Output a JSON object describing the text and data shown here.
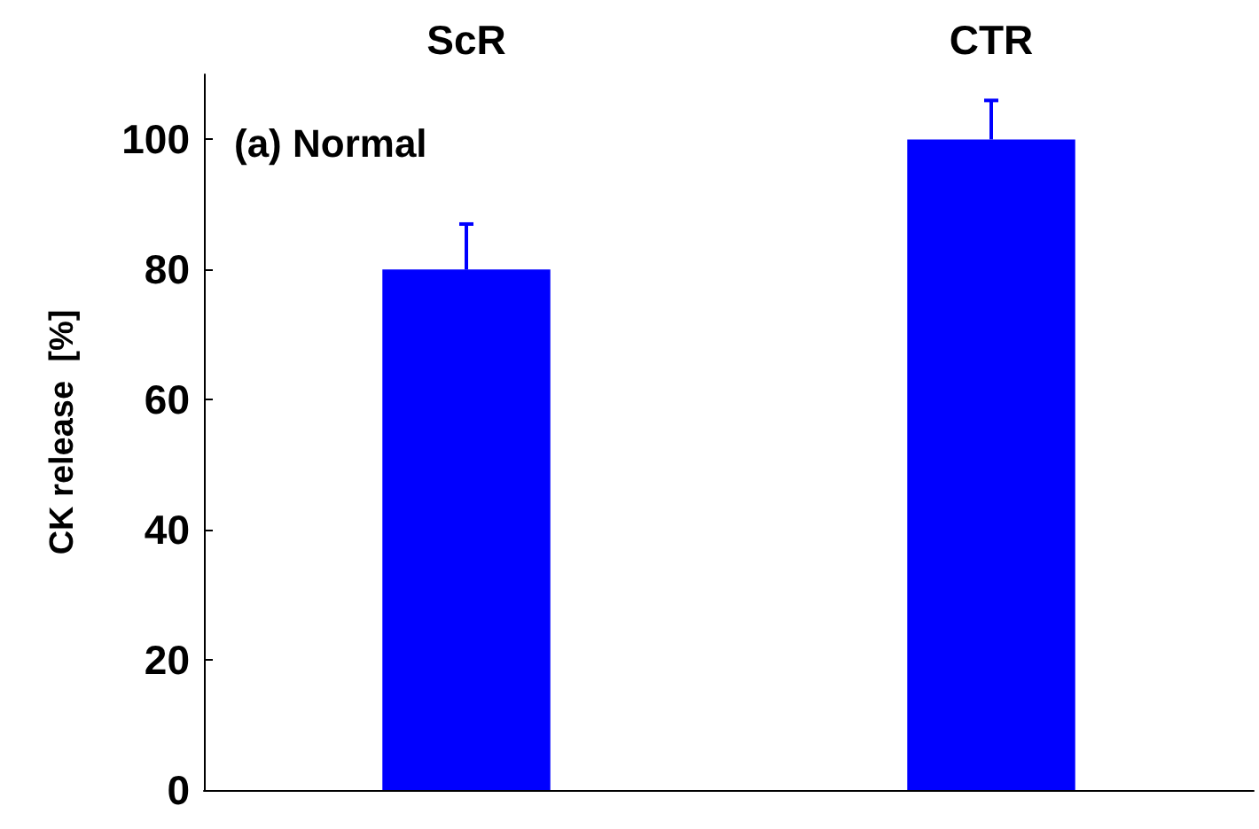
{
  "chart_data": {
    "type": "bar",
    "categories": [
      "ScR",
      "CTR"
    ],
    "values": [
      80,
      100
    ],
    "color": "#0000ff",
    "errors": [
      [
        80,
        87
      ],
      [
        100,
        106
      ]
    ],
    "ylim": [
      0,
      110
    ],
    "yticks": [
      0,
      20,
      40,
      60,
      80,
      100
    ],
    "ylabel": "CK release  [%]",
    "annotations": [
      "(a) Normal"
    ]
  }
}
